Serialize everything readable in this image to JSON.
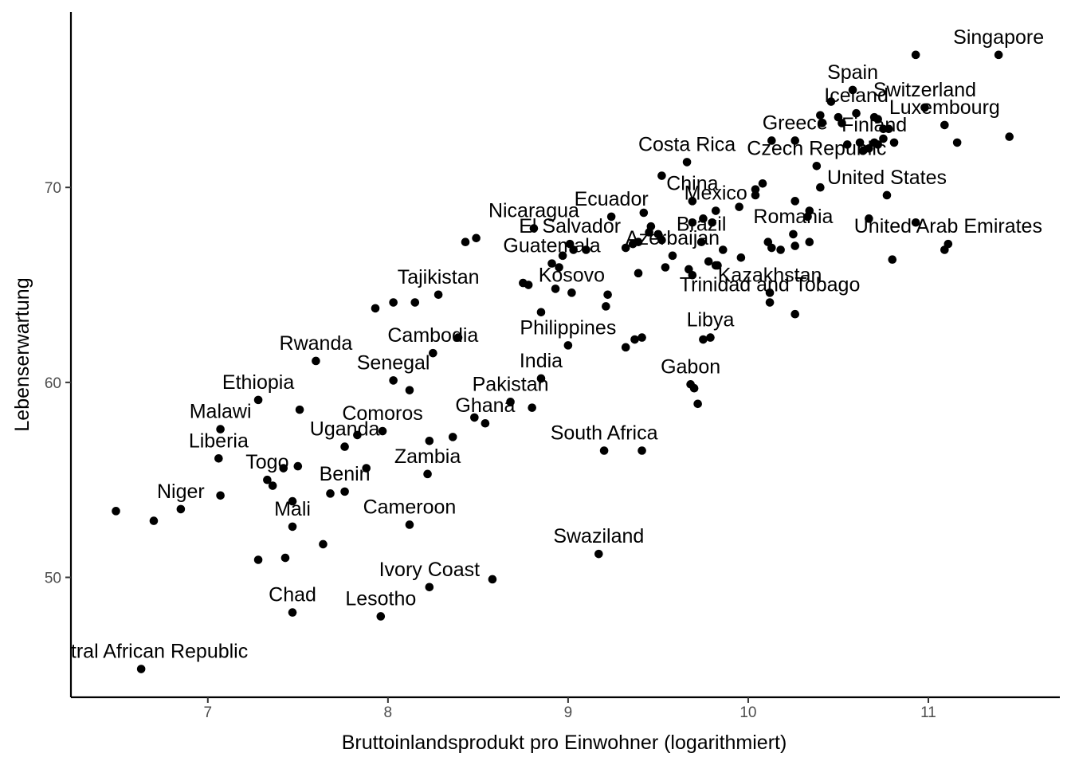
{
  "chart_data": {
    "type": "scatter",
    "title": "",
    "xlabel": "Bruttoinlandsprodukt pro Einwohner (logarithmiert)",
    "ylabel": "Lebenserwartung",
    "xlim": [
      6.24,
      11.73
    ],
    "ylim": [
      43.85,
      79.0
    ],
    "x_ticks": [
      "7",
      "8",
      "9",
      "10",
      "11"
    ],
    "y_ticks": [
      "50",
      "60",
      "70"
    ],
    "grid": false,
    "point_color": "#000000",
    "points": [
      {
        "x": 11.39,
        "y": 76.8,
        "label": "Singapore"
      },
      {
        "x": 10.93,
        "y": 76.8
      },
      {
        "x": 10.58,
        "y": 75.0,
        "label": "Spain"
      },
      {
        "x": 10.98,
        "y": 74.1,
        "label": "Switzerland"
      },
      {
        "x": 10.46,
        "y": 74.4
      },
      {
        "x": 10.4,
        "y": 73.7
      },
      {
        "x": 10.5,
        "y": 73.6
      },
      {
        "x": 10.6,
        "y": 73.8,
        "label": "Iceland"
      },
      {
        "x": 10.7,
        "y": 73.6
      },
      {
        "x": 10.72,
        "y": 73.5
      },
      {
        "x": 10.41,
        "y": 73.3
      },
      {
        "x": 10.52,
        "y": 73.3
      },
      {
        "x": 10.75,
        "y": 73.0
      },
      {
        "x": 10.78,
        "y": 73.0
      },
      {
        "x": 10.75,
        "y": 72.5
      },
      {
        "x": 11.09,
        "y": 73.2,
        "label": "Luxembourg"
      },
      {
        "x": 10.26,
        "y": 72.4,
        "label": "Greece"
      },
      {
        "x": 10.13,
        "y": 72.4
      },
      {
        "x": 10.7,
        "y": 72.3,
        "label": "Finland"
      },
      {
        "x": 10.55,
        "y": 72.2
      },
      {
        "x": 10.62,
        "y": 72.3
      },
      {
        "x": 10.64,
        "y": 71.9
      },
      {
        "x": 10.67,
        "y": 72.0
      },
      {
        "x": 10.72,
        "y": 72.2
      },
      {
        "x": 10.81,
        "y": 72.3
      },
      {
        "x": 11.16,
        "y": 72.3
      },
      {
        "x": 11.45,
        "y": 72.6
      },
      {
        "x": 9.66,
        "y": 71.3,
        "label": "Costa Rica"
      },
      {
        "x": 9.52,
        "y": 70.6
      },
      {
        "x": 10.38,
        "y": 71.1,
        "label": "Czech Republic"
      },
      {
        "x": 10.4,
        "y": 70.0
      },
      {
        "x": 10.08,
        "y": 70.2
      },
      {
        "x": 10.04,
        "y": 69.6
      },
      {
        "x": 10.04,
        "y": 69.9
      },
      {
        "x": 9.69,
        "y": 69.3,
        "label": "China"
      },
      {
        "x": 9.82,
        "y": 68.8,
        "label": "Mexico"
      },
      {
        "x": 9.95,
        "y": 69.0
      },
      {
        "x": 10.26,
        "y": 69.3
      },
      {
        "x": 10.34,
        "y": 68.8
      },
      {
        "x": 10.33,
        "y": 68.5
      },
      {
        "x": 10.77,
        "y": 69.6,
        "label": "United States"
      },
      {
        "x": 10.67,
        "y": 68.4
      },
      {
        "x": 10.93,
        "y": 68.2
      },
      {
        "x": 9.24,
        "y": 68.5,
        "label": "Ecuador"
      },
      {
        "x": 9.42,
        "y": 68.7
      },
      {
        "x": 9.46,
        "y": 68.0
      },
      {
        "x": 9.45,
        "y": 67.7
      },
      {
        "x": 9.5,
        "y": 67.6
      },
      {
        "x": 9.52,
        "y": 67.3
      },
      {
        "x": 9.69,
        "y": 68.2
      },
      {
        "x": 9.75,
        "y": 68.4
      },
      {
        "x": 9.8,
        "y": 68.2
      },
      {
        "x": 10.25,
        "y": 67.6,
        "label": "Romania"
      },
      {
        "x": 10.11,
        "y": 67.2
      },
      {
        "x": 10.13,
        "y": 66.9
      },
      {
        "x": 10.18,
        "y": 66.8
      },
      {
        "x": 10.26,
        "y": 67.0
      },
      {
        "x": 10.34,
        "y": 67.2
      },
      {
        "x": 11.11,
        "y": 67.1,
        "label": "United Arab Emirates"
      },
      {
        "x": 11.09,
        "y": 66.8
      },
      {
        "x": 10.8,
        "y": 66.3
      },
      {
        "x": 8.81,
        "y": 67.9,
        "label": "Nicaragua"
      },
      {
        "x": 8.43,
        "y": 67.2
      },
      {
        "x": 8.49,
        "y": 67.4
      },
      {
        "x": 9.01,
        "y": 67.1,
        "label": "El Salvador"
      },
      {
        "x": 9.03,
        "y": 66.8
      },
      {
        "x": 9.1,
        "y": 66.8
      },
      {
        "x": 9.32,
        "y": 66.9
      },
      {
        "x": 9.36,
        "y": 67.1
      },
      {
        "x": 9.39,
        "y": 67.2
      },
      {
        "x": 9.74,
        "y": 67.2,
        "label": "Brazil"
      },
      {
        "x": 9.86,
        "y": 66.8
      },
      {
        "x": 9.58,
        "y": 66.5,
        "label": "Azerbaijan"
      },
      {
        "x": 9.54,
        "y": 65.9
      },
      {
        "x": 9.67,
        "y": 65.8
      },
      {
        "x": 9.69,
        "y": 65.5
      },
      {
        "x": 9.78,
        "y": 66.2
      },
      {
        "x": 9.82,
        "y": 66.0
      },
      {
        "x": 9.83,
        "y": 66.0
      },
      {
        "x": 9.96,
        "y": 66.4
      },
      {
        "x": 8.91,
        "y": 66.1,
        "label": "Guatemala"
      },
      {
        "x": 8.95,
        "y": 65.9
      },
      {
        "x": 8.97,
        "y": 66.5
      },
      {
        "x": 8.75,
        "y": 65.1
      },
      {
        "x": 8.78,
        "y": 65.0
      },
      {
        "x": 9.39,
        "y": 65.6
      },
      {
        "x": 10.12,
        "y": 64.6,
        "label": "Kazakhstan"
      },
      {
        "x": 9.02,
        "y": 64.6,
        "label": "Kosovo"
      },
      {
        "x": 8.93,
        "y": 64.8
      },
      {
        "x": 9.22,
        "y": 64.5
      },
      {
        "x": 9.21,
        "y": 63.9
      },
      {
        "x": 10.12,
        "y": 64.1,
        "label": "Trinidad and Tobago"
      },
      {
        "x": 10.26,
        "y": 63.5
      },
      {
        "x": 8.28,
        "y": 64.5,
        "label": "Tajikistan"
      },
      {
        "x": 7.93,
        "y": 63.8
      },
      {
        "x": 8.03,
        "y": 64.1
      },
      {
        "x": 8.15,
        "y": 64.1
      },
      {
        "x": 8.85,
        "y": 63.6
      },
      {
        "x": 9.79,
        "y": 62.3,
        "label": "Libya"
      },
      {
        "x": 9.75,
        "y": 62.2
      },
      {
        "x": 9.0,
        "y": 61.9,
        "label": "Philippines"
      },
      {
        "x": 9.32,
        "y": 61.8
      },
      {
        "x": 9.37,
        "y": 62.2
      },
      {
        "x": 9.41,
        "y": 62.3
      },
      {
        "x": 8.39,
        "y": 62.3
      },
      {
        "x": 8.25,
        "y": 61.5,
        "label": "Cambodia"
      },
      {
        "x": 7.6,
        "y": 61.1,
        "label": "Rwanda"
      },
      {
        "x": 8.85,
        "y": 60.2,
        "label": "India"
      },
      {
        "x": 8.03,
        "y": 60.1,
        "label": "Senegal"
      },
      {
        "x": 8.12,
        "y": 59.6
      },
      {
        "x": 9.68,
        "y": 59.9,
        "label": "Gabon"
      },
      {
        "x": 9.7,
        "y": 59.7
      },
      {
        "x": 9.72,
        "y": 58.9
      },
      {
        "x": 7.28,
        "y": 59.1,
        "label": "Ethiopia"
      },
      {
        "x": 7.51,
        "y": 58.6
      },
      {
        "x": 8.8,
        "y": 58.7
      },
      {
        "x": 8.68,
        "y": 59.0,
        "label": "Pakistan"
      },
      {
        "x": 8.48,
        "y": 58.2
      },
      {
        "x": 8.54,
        "y": 57.9,
        "label": "Ghana"
      },
      {
        "x": 7.07,
        "y": 57.6,
        "label": "Malawi"
      },
      {
        "x": 7.83,
        "y": 57.3
      },
      {
        "x": 7.97,
        "y": 57.5,
        "label": "Comoros"
      },
      {
        "x": 8.23,
        "y": 57.0
      },
      {
        "x": 8.36,
        "y": 57.2
      },
      {
        "x": 7.76,
        "y": 56.7,
        "label": "Uganda"
      },
      {
        "x": 7.06,
        "y": 56.1,
        "label": "Liberia"
      },
      {
        "x": 9.2,
        "y": 56.5,
        "label": "South Africa"
      },
      {
        "x": 9.41,
        "y": 56.5
      },
      {
        "x": 7.42,
        "y": 55.6
      },
      {
        "x": 7.5,
        "y": 55.7
      },
      {
        "x": 7.88,
        "y": 55.6
      },
      {
        "x": 8.22,
        "y": 55.3,
        "label": "Zambia"
      },
      {
        "x": 7.33,
        "y": 55.0,
        "label": "Togo"
      },
      {
        "x": 7.36,
        "y": 54.7
      },
      {
        "x": 7.68,
        "y": 54.3
      },
      {
        "x": 7.76,
        "y": 54.4,
        "label": "Benin"
      },
      {
        "x": 7.07,
        "y": 54.2
      },
      {
        "x": 7.47,
        "y": 53.9
      },
      {
        "x": 6.85,
        "y": 53.5,
        "label": "Niger"
      },
      {
        "x": 6.49,
        "y": 53.4
      },
      {
        "x": 6.7,
        "y": 52.9
      },
      {
        "x": 8.12,
        "y": 52.7,
        "label": "Cameroon"
      },
      {
        "x": 7.47,
        "y": 52.6,
        "label": "Mali"
      },
      {
        "x": 7.64,
        "y": 51.7
      },
      {
        "x": 7.28,
        "y": 50.9
      },
      {
        "x": 7.43,
        "y": 51.0
      },
      {
        "x": 9.17,
        "y": 51.2,
        "label": "Swaziland"
      },
      {
        "x": 8.58,
        "y": 49.9
      },
      {
        "x": 8.23,
        "y": 49.5,
        "label": "Ivory Coast"
      },
      {
        "x": 7.47,
        "y": 48.2,
        "label": "Chad"
      },
      {
        "x": 7.96,
        "y": 48.0,
        "label": "Lesotho"
      },
      {
        "x": 6.63,
        "y": 45.3,
        "label": "Central African Republic"
      }
    ]
  }
}
